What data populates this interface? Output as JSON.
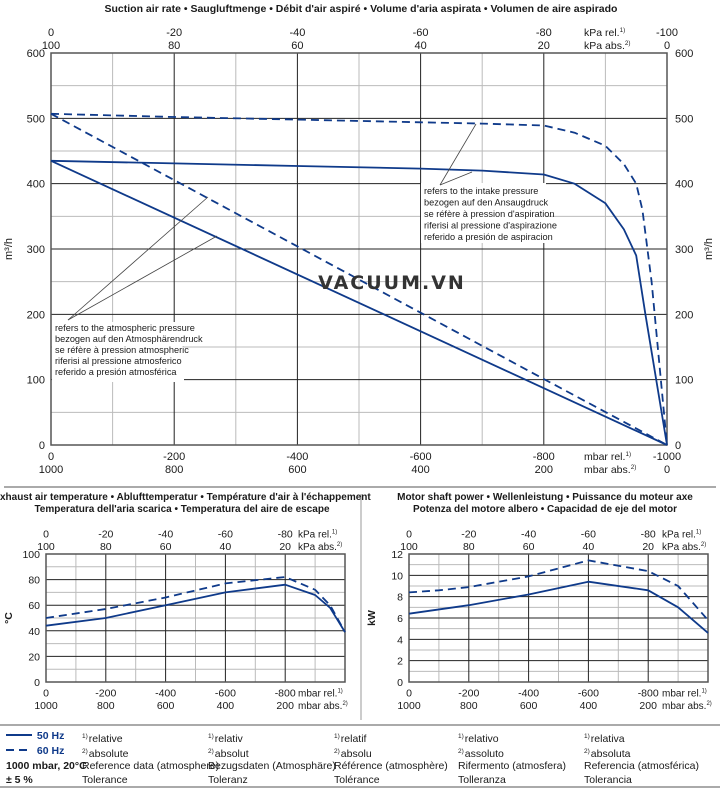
{
  "colors": {
    "curve": "#0f3a8a",
    "grid_major": "#222222",
    "grid_minor": "#bbbbbb",
    "separator": "#aaaaaa",
    "watermark": "#333333"
  },
  "watermark": "VACUUM.VN",
  "chart_data": [
    {
      "id": "suction",
      "type": "line",
      "title": "Suction air rate  •  Saugluftmenge  •  Débit d'air aspiré  •  Volume d'aria aspirata  •  Volumen de aire aspirado",
      "ylabel": "m³/h",
      "ylim": [
        0,
        600
      ],
      "xlim": [
        0,
        -1000
      ],
      "yticks": [
        "0",
        "100",
        "200",
        "300",
        "400",
        "500",
        "600"
      ],
      "x_bottom_rel": [
        "0",
        "-200",
        "-400",
        "-600",
        "-800",
        "-1000"
      ],
      "x_bottom_abs": [
        "1000",
        "800",
        "600",
        "400",
        "200",
        "0"
      ],
      "x_bottom_rel_unit": "mbar rel.",
      "x_bottom_abs_unit": "mbar abs.",
      "x_top_rel": [
        "0",
        "-20",
        "-40",
        "-60",
        "-80",
        "-100"
      ],
      "x_top_abs": [
        "100",
        "80",
        "60",
        "40",
        "20",
        "0"
      ],
      "x_top_rel_unit": "kPa rel.",
      "x_top_abs_unit": "kPa abs.",
      "annotations": [
        {
          "id": "intake",
          "lines": [
            "refers to the intake pressure",
            "bezogen auf den Ansaugdruck",
            "se réfère à pression d'aspiration",
            "riferisi al pressione d'aspirazione",
            "referido a presión de aspiracion"
          ]
        },
        {
          "id": "atmo",
          "lines": [
            "refers to the atmospheric pressure",
            "bezogen auf den Atmosphärendruck",
            "se réfère à pression atmospheric",
            "riferisi al pressione atmosferico",
            "referido a presión atmosférica"
          ]
        }
      ],
      "series": [
        {
          "name": "50 Hz intake",
          "style": "solid",
          "x": [
            0,
            -200,
            -400,
            -600,
            -700,
            -800,
            -850,
            -900,
            -930,
            -950,
            -965,
            -1000
          ],
          "y": [
            435,
            431,
            427,
            423,
            420,
            414,
            400,
            370,
            330,
            290,
            200,
            0
          ]
        },
        {
          "name": "60 Hz intake",
          "style": "dashed",
          "x": [
            0,
            -200,
            -400,
            -600,
            -700,
            -800,
            -850,
            -900,
            -930,
            -950,
            -960,
            -975,
            -1000
          ],
          "y": [
            507,
            502,
            498,
            494,
            492,
            489,
            478,
            458,
            430,
            400,
            360,
            250,
            0
          ]
        },
        {
          "name": "50 Hz atmospheric",
          "style": "solid",
          "x": [
            0,
            -1000
          ],
          "y": [
            435,
            0
          ]
        },
        {
          "name": "60 Hz atmospheric",
          "style": "dashed",
          "x": [
            0,
            -800,
            -1000
          ],
          "y": [
            507,
            101,
            0
          ]
        }
      ]
    },
    {
      "id": "temperature",
      "type": "line",
      "title_lines": [
        "Exhaust air temperature  •  Ablufttemperatur  •  Température d'air à l'échappement",
        "Temperatura dell'aria scarica  •  Temperatura del aire de escape"
      ],
      "ylabel": "°C",
      "ylim": [
        0,
        100
      ],
      "xlim": [
        0,
        -1000
      ],
      "yticks": [
        "0",
        "20",
        "40",
        "60",
        "80",
        "100"
      ],
      "x_bottom_rel": [
        "0",
        "-200",
        "-400",
        "-600",
        "-800"
      ],
      "x_bottom_abs": [
        "1000",
        "800",
        "600",
        "400",
        "200"
      ],
      "x_bottom_rel_unit": "mbar rel.",
      "x_bottom_abs_unit": "mbar abs.",
      "x_top_rel": [
        "0",
        "-20",
        "-40",
        "-60",
        "-80"
      ],
      "x_top_abs": [
        "100",
        "80",
        "60",
        "40",
        "20"
      ],
      "x_top_rel_unit": "kPa rel.",
      "x_top_abs_unit": "kPa abs.",
      "series": [
        {
          "name": "50 Hz",
          "style": "solid",
          "x": [
            0,
            -200,
            -400,
            -600,
            -800,
            -900,
            -950,
            -1000
          ],
          "y": [
            44,
            50,
            60,
            70,
            76,
            68,
            58,
            39
          ]
        },
        {
          "name": "60 Hz",
          "style": "dashed",
          "x": [
            0,
            -200,
            -400,
            -600,
            -800,
            -900,
            -950,
            -1000
          ],
          "y": [
            50,
            57,
            66,
            77,
            82,
            72,
            60,
            39
          ]
        }
      ]
    },
    {
      "id": "power",
      "type": "line",
      "title_lines": [
        "Motor shaft power  •  Wellenleistung  •  Puissance du moteur axe",
        "Potenza del motore albero  •  Capacidad de eje del motor"
      ],
      "ylabel": "kW",
      "ylim": [
        0,
        12
      ],
      "xlim": [
        0,
        -1000
      ],
      "yticks": [
        "0",
        "2",
        "4",
        "6",
        "8",
        "10",
        "12"
      ],
      "x_bottom_rel": [
        "0",
        "-200",
        "-400",
        "-600",
        "-800"
      ],
      "x_bottom_abs": [
        "1000",
        "800",
        "600",
        "400",
        "200"
      ],
      "x_bottom_rel_unit": "mbar rel.",
      "x_bottom_abs_unit": "mbar abs.",
      "x_top_rel": [
        "0",
        "-20",
        "-40",
        "-60",
        "-80"
      ],
      "x_top_abs": [
        "100",
        "80",
        "60",
        "40",
        "20"
      ],
      "x_top_rel_unit": "kPa rel.",
      "x_top_abs_unit": "kPa abs.",
      "series": [
        {
          "name": "50 Hz",
          "style": "solid",
          "x": [
            0,
            -200,
            -400,
            -600,
            -800,
            -900,
            -1000
          ],
          "y": [
            6.4,
            7.2,
            8.2,
            9.4,
            8.6,
            7.0,
            4.6
          ]
        },
        {
          "name": "60 Hz",
          "style": "dashed",
          "x": [
            0,
            -100,
            -200,
            -400,
            -600,
            -800,
            -900,
            -1000
          ],
          "y": [
            8.4,
            8.6,
            8.9,
            9.9,
            11.4,
            10.4,
            9.0,
            5.8
          ]
        }
      ]
    }
  ],
  "legend": {
    "series_50": "50 Hz",
    "series_60": "60 Hz",
    "reference": "1000 mbar, 20°C",
    "tolerance": "± 5 %",
    "sup1": "1)",
    "sup2": "2)",
    "languages": [
      {
        "relative": "relative",
        "absolute": "absolute",
        "reference": "Reference data (atmosphere)",
        "tolerance": "Tolerance"
      },
      {
        "relative": "relativ",
        "absolute": "absolut",
        "reference": "Bezugsdaten (Atmosphäre)",
        "tolerance": "Toleranz"
      },
      {
        "relative": "relatif",
        "absolute": "absolu",
        "reference": "Référence (atmosphère)",
        "tolerance": "Tolérance"
      },
      {
        "relative": "relativo",
        "absolute": "assoluto",
        "reference": "Rifermento (atmosfera)",
        "tolerance": "Tolleranza"
      },
      {
        "relative": "relativa",
        "absolute": "absoluta",
        "reference": "Referencia (atmosférica)",
        "tolerance": "Tolerancia"
      }
    ]
  }
}
